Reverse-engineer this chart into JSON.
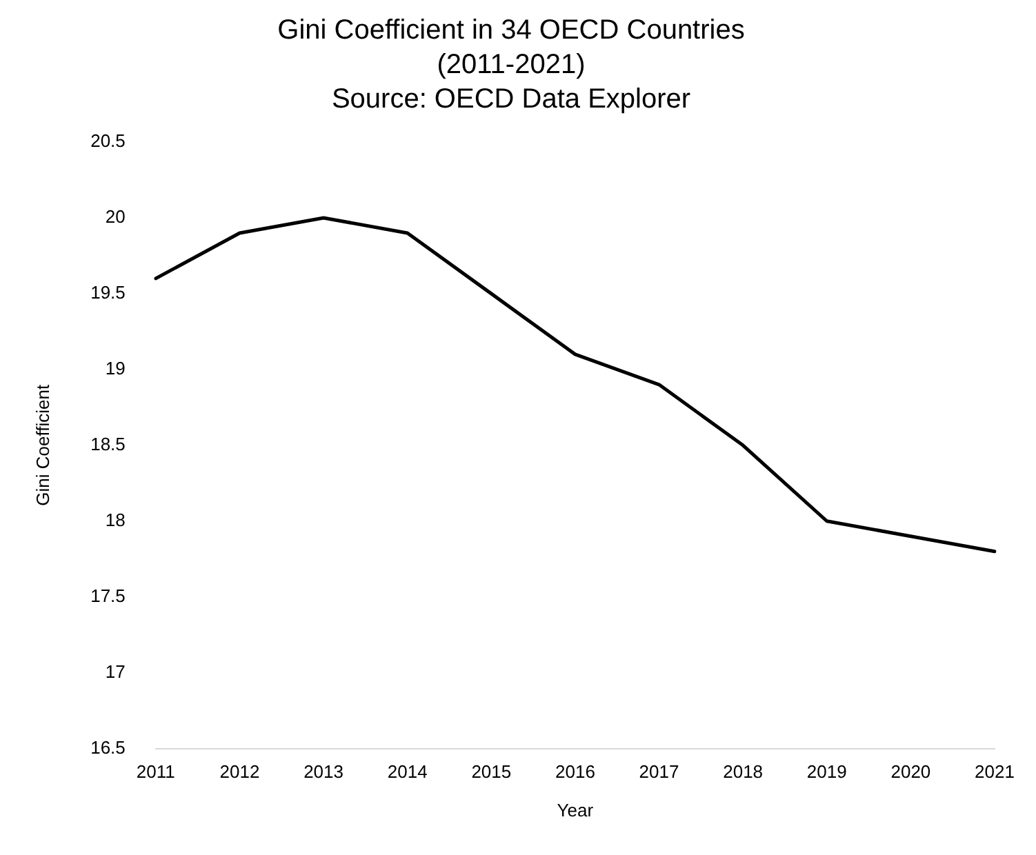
{
  "chart_data": {
    "type": "line",
    "title": "Gini Coefficient in 34 OECD Countries\n(2011-2021)",
    "annotations": [
      "Source: OECD Data Explorer"
    ],
    "xlabel": "Year",
    "ylabel": "Gini Coefficient",
    "categories": [
      "2011",
      "2012",
      "2013",
      "2014",
      "2015",
      "2016",
      "2017",
      "2018",
      "2019",
      "2020",
      "2021"
    ],
    "series": [
      {
        "color": "#000000",
        "values": [
          19.6,
          19.9,
          20.0,
          19.9,
          19.5,
          19.1,
          18.9,
          18.5,
          18.0,
          17.9,
          17.8
        ]
      }
    ],
    "ylim": [
      16.5,
      20.5
    ],
    "yticks": [
      16.5,
      17,
      17.5,
      18,
      18.5,
      19,
      19.5,
      20,
      20.5
    ],
    "grid": false,
    "legend": false,
    "marker": "none",
    "line_style": "solid"
  }
}
